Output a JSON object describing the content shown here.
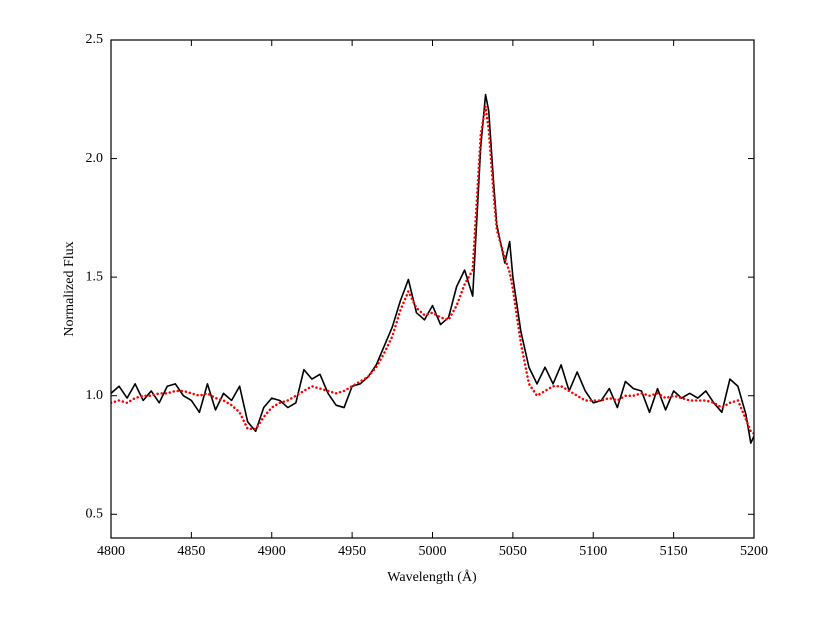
{
  "chart_data": {
    "type": "line",
    "xlabel": "Wavelength (Å)",
    "ylabel": "Normalized Flux",
    "x": [
      4800,
      4805,
      4810,
      4815,
      4820,
      4825,
      4830,
      4835,
      4840,
      4845,
      4850,
      4855,
      4860,
      4865,
      4870,
      4875,
      4880,
      4885,
      4890,
      4895,
      4900,
      4905,
      4910,
      4915,
      4920,
      4925,
      4930,
      4935,
      4940,
      4945,
      4950,
      4955,
      4960,
      4965,
      4970,
      4975,
      4980,
      4985,
      4990,
      4995,
      5000,
      5005,
      5010,
      5015,
      5020,
      5025,
      5030,
      5033,
      5035,
      5038,
      5040,
      5045,
      5048,
      5050,
      5055,
      5060,
      5065,
      5070,
      5075,
      5080,
      5085,
      5090,
      5095,
      5100,
      5105,
      5110,
      5115,
      5120,
      5125,
      5130,
      5135,
      5140,
      5145,
      5150,
      5155,
      5160,
      5165,
      5170,
      5175,
      5180,
      5185,
      5190,
      5195,
      5198,
      5200
    ],
    "series": [
      {
        "color": "#000000",
        "linestyle": "solid",
        "values": [
          1.01,
          1.04,
          0.99,
          1.05,
          0.98,
          1.02,
          0.97,
          1.04,
          1.05,
          1.0,
          0.98,
          0.93,
          1.05,
          0.94,
          1.01,
          0.98,
          1.04,
          0.89,
          0.85,
          0.95,
          0.99,
          0.98,
          0.95,
          0.97,
          1.11,
          1.07,
          1.09,
          1.01,
          0.96,
          0.95,
          1.04,
          1.05,
          1.08,
          1.13,
          1.21,
          1.29,
          1.4,
          1.49,
          1.35,
          1.32,
          1.38,
          1.3,
          1.33,
          1.46,
          1.53,
          1.42,
          2.05,
          2.27,
          2.2,
          1.9,
          1.72,
          1.56,
          1.65,
          1.5,
          1.27,
          1.12,
          1.05,
          1.12,
          1.05,
          1.13,
          1.02,
          1.1,
          1.02,
          0.97,
          0.98,
          1.03,
          0.95,
          1.06,
          1.03,
          1.02,
          0.93,
          1.03,
          0.94,
          1.02,
          0.99,
          1.01,
          0.99,
          1.02,
          0.97,
          0.93,
          1.07,
          1.04,
          0.92,
          0.8,
          0.83
        ]
      },
      {
        "color": "#ff0000",
        "linestyle": "dotted",
        "values": [
          0.97,
          0.98,
          0.97,
          0.99,
          1.0,
          1.0,
          1.01,
          1.01,
          1.02,
          1.02,
          1.01,
          1.0,
          1.01,
          0.99,
          0.98,
          0.96,
          0.93,
          0.86,
          0.86,
          0.91,
          0.95,
          0.97,
          0.98,
          1.0,
          1.02,
          1.04,
          1.03,
          1.02,
          1.01,
          1.02,
          1.04,
          1.06,
          1.08,
          1.12,
          1.18,
          1.25,
          1.36,
          1.44,
          1.37,
          1.34,
          1.35,
          1.33,
          1.32,
          1.38,
          1.47,
          1.53,
          2.1,
          2.22,
          2.12,
          1.85,
          1.7,
          1.58,
          1.52,
          1.45,
          1.22,
          1.05,
          1.0,
          1.02,
          1.04,
          1.04,
          1.02,
          1.0,
          0.98,
          0.98,
          0.98,
          0.99,
          0.98,
          1.0,
          1.0,
          1.01,
          1.0,
          1.01,
          0.99,
          1.0,
          0.99,
          0.98,
          0.98,
          0.98,
          0.97,
          0.95,
          0.97,
          0.98,
          0.9,
          0.85,
          0.84
        ]
      }
    ],
    "xlim": [
      4800,
      5200
    ],
    "xticks": [
      4800,
      4850,
      4900,
      4950,
      5000,
      5050,
      5100,
      5150,
      5200
    ],
    "ylim": [
      0.4,
      2.5
    ],
    "yticks": [
      0.5,
      {
        "value": 1,
        "label": "1.0"
      },
      1.5,
      {
        "value": 2,
        "label": "2.0"
      },
      2.5
    ],
    "grid": false
  }
}
